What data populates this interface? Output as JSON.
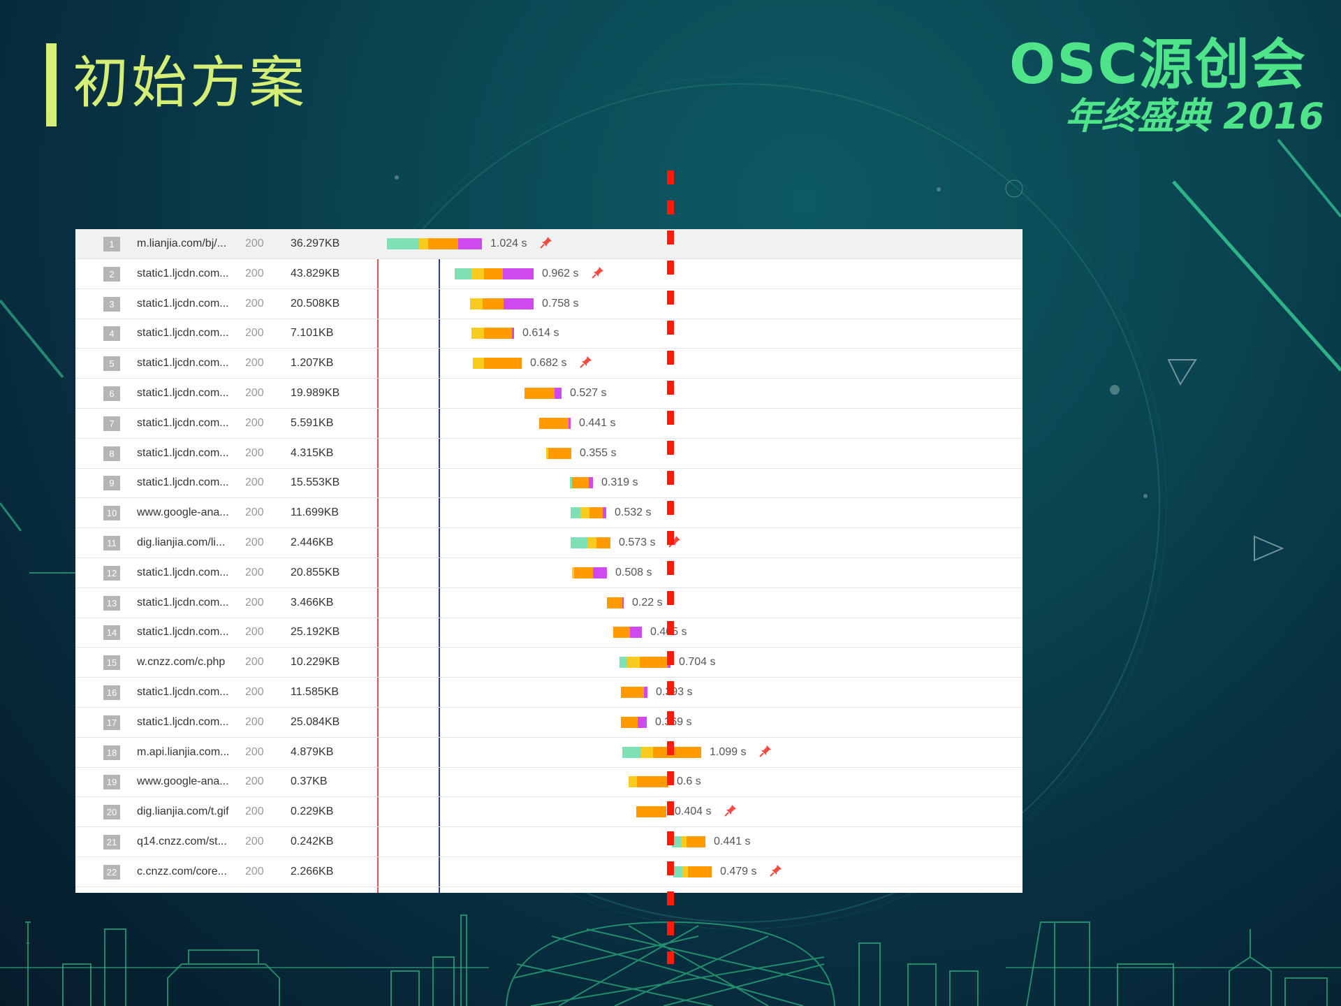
{
  "slide": {
    "title": "初始方案",
    "logo_main": "OSC源创会",
    "logo_sub": "年终盛典 2016"
  },
  "colors": {
    "title": "#d5ef76",
    "logo": "#4fe38a",
    "timing_green": "#7ee0b5",
    "timing_yellow": "#f7cc1e",
    "timing_orange": "#ff9a00",
    "timing_purple": "#cf49f1",
    "marker_red": "#ff1a0a"
  },
  "requests": [
    {
      "num": "1",
      "url": "m.lianjia.com/bj/...",
      "status": "200",
      "size": "36.297KB",
      "time": "1.024 s",
      "pinned": true,
      "start": 0.0,
      "segments": [
        {
          "c": "timing_green",
          "w": 0.046
        },
        {
          "c": "timing_yellow",
          "w": 0.013
        },
        {
          "c": "timing_orange",
          "w": 0.043
        },
        {
          "c": "timing_purple",
          "w": 0.034
        }
      ]
    },
    {
      "num": "2",
      "url": "static1.ljcdn.com...",
      "status": "200",
      "size": "43.829KB",
      "time": "0.962 s",
      "pinned": true,
      "start": 0.097,
      "segments": [
        {
          "c": "timing_green",
          "w": 0.024
        },
        {
          "c": "timing_yellow",
          "w": 0.018
        },
        {
          "c": "timing_orange",
          "w": 0.027
        },
        {
          "c": "timing_purple",
          "w": 0.044
        }
      ]
    },
    {
      "num": "3",
      "url": "static1.ljcdn.com...",
      "status": "200",
      "size": "20.508KB",
      "time": "0.758 s",
      "pinned": false,
      "start": 0.119,
      "segments": [
        {
          "c": "timing_yellow",
          "w": 0.018
        },
        {
          "c": "timing_orange",
          "w": 0.03
        },
        {
          "c": "timing_purple",
          "w": 0.043
        }
      ]
    },
    {
      "num": "4",
      "url": "static1.ljcdn.com...",
      "status": "200",
      "size": "7.101KB",
      "time": "0.614 s",
      "pinned": false,
      "start": 0.121,
      "segments": [
        {
          "c": "timing_yellow",
          "w": 0.018
        },
        {
          "c": "timing_orange",
          "w": 0.04
        },
        {
          "c": "timing_purple",
          "w": 0.003
        }
      ]
    },
    {
      "num": "5",
      "url": "static1.ljcdn.com...",
      "status": "200",
      "size": "1.207KB",
      "time": "0.682 s",
      "pinned": true,
      "start": 0.123,
      "segments": [
        {
          "c": "timing_yellow",
          "w": 0.016
        },
        {
          "c": "timing_orange",
          "w": 0.054
        }
      ]
    },
    {
      "num": "6",
      "url": "static1.ljcdn.com...",
      "status": "200",
      "size": "19.989KB",
      "time": "0.527 s",
      "pinned": false,
      "start": 0.197,
      "segments": [
        {
          "c": "timing_orange",
          "w": 0.043
        },
        {
          "c": "timing_purple",
          "w": 0.01
        }
      ]
    },
    {
      "num": "7",
      "url": "static1.ljcdn.com...",
      "status": "200",
      "size": "5.591KB",
      "time": "0.441 s",
      "pinned": false,
      "start": 0.218,
      "segments": [
        {
          "c": "timing_orange",
          "w": 0.042
        },
        {
          "c": "timing_purple",
          "w": 0.003
        }
      ]
    },
    {
      "num": "8",
      "url": "static1.ljcdn.com...",
      "status": "200",
      "size": "4.315KB",
      "time": "0.355 s",
      "pinned": false,
      "start": 0.228,
      "segments": [
        {
          "c": "timing_yellow",
          "w": 0.003
        },
        {
          "c": "timing_orange",
          "w": 0.033
        }
      ]
    },
    {
      "num": "9",
      "url": "static1.ljcdn.com...",
      "status": "200",
      "size": "15.553KB",
      "time": "0.319 s",
      "pinned": false,
      "start": 0.262,
      "segments": [
        {
          "c": "timing_green",
          "w": 0.003
        },
        {
          "c": "timing_orange",
          "w": 0.024
        },
        {
          "c": "timing_purple",
          "w": 0.006
        }
      ]
    },
    {
      "num": "10",
      "url": "www.google-ana...",
      "status": "200",
      "size": "11.699KB",
      "time": "0.532 s",
      "pinned": false,
      "start": 0.263,
      "segments": [
        {
          "c": "timing_green",
          "w": 0.014
        },
        {
          "c": "timing_yellow",
          "w": 0.013
        },
        {
          "c": "timing_orange",
          "w": 0.019
        },
        {
          "c": "timing_purple",
          "w": 0.005
        }
      ]
    },
    {
      "num": "11",
      "url": "dig.lianjia.com/li...",
      "status": "200",
      "size": "2.446KB",
      "time": "0.573 s",
      "pinned": true,
      "start": 0.263,
      "segments": [
        {
          "c": "timing_green",
          "w": 0.024
        },
        {
          "c": "timing_yellow",
          "w": 0.013
        },
        {
          "c": "timing_orange",
          "w": 0.02
        }
      ]
    },
    {
      "num": "12",
      "url": "static1.ljcdn.com...",
      "status": "200",
      "size": "20.855KB",
      "time": "0.508 s",
      "pinned": false,
      "start": 0.265,
      "segments": [
        {
          "c": "timing_yellow",
          "w": 0.003
        },
        {
          "c": "timing_orange",
          "w": 0.027
        },
        {
          "c": "timing_purple",
          "w": 0.02
        }
      ]
    },
    {
      "num": "13",
      "url": "static1.ljcdn.com...",
      "status": "200",
      "size": "3.466KB",
      "time": "0.22 s",
      "pinned": false,
      "start": 0.315,
      "segments": [
        {
          "c": "timing_orange",
          "w": 0.022
        },
        {
          "c": "timing_purple",
          "w": 0.002
        }
      ]
    },
    {
      "num": "14",
      "url": "static1.ljcdn.com...",
      "status": "200",
      "size": "25.192KB",
      "time": "0.405 s",
      "pinned": false,
      "start": 0.324,
      "segments": [
        {
          "c": "timing_orange",
          "w": 0.024
        },
        {
          "c": "timing_purple",
          "w": 0.017
        }
      ]
    },
    {
      "num": "15",
      "url": "w.cnzz.com/c.php",
      "status": "200",
      "size": "10.229KB",
      "time": "0.704 s",
      "pinned": false,
      "start": 0.333,
      "segments": [
        {
          "c": "timing_green",
          "w": 0.011
        },
        {
          "c": "timing_yellow",
          "w": 0.018
        },
        {
          "c": "timing_orange",
          "w": 0.04
        },
        {
          "c": "timing_purple",
          "w": 0.004
        }
      ]
    },
    {
      "num": "16",
      "url": "static1.ljcdn.com...",
      "status": "200",
      "size": "11.585KB",
      "time": "0.393 s",
      "pinned": false,
      "start": 0.335,
      "segments": [
        {
          "c": "timing_orange",
          "w": 0.033
        },
        {
          "c": "timing_purple",
          "w": 0.005
        }
      ]
    },
    {
      "num": "17",
      "url": "static1.ljcdn.com...",
      "status": "200",
      "size": "25.084KB",
      "time": "0.369 s",
      "pinned": false,
      "start": 0.335,
      "segments": [
        {
          "c": "timing_orange",
          "w": 0.024
        },
        {
          "c": "timing_purple",
          "w": 0.013
        }
      ]
    },
    {
      "num": "18",
      "url": "m.api.lianjia.com...",
      "status": "200",
      "size": "4.879KB",
      "time": "1.099 s",
      "pinned": true,
      "start": 0.337,
      "segments": [
        {
          "c": "timing_green",
          "w": 0.027
        },
        {
          "c": "timing_yellow",
          "w": 0.017
        },
        {
          "c": "timing_orange",
          "w": 0.069
        }
      ]
    },
    {
      "num": "19",
      "url": "www.google-ana...",
      "status": "200",
      "size": "0.37KB",
      "time": "0.6 s",
      "pinned": false,
      "start": 0.346,
      "segments": [
        {
          "c": "timing_yellow",
          "w": 0.012
        },
        {
          "c": "timing_orange",
          "w": 0.045
        }
      ]
    },
    {
      "num": "20",
      "url": "dig.lianjia.com/t.gif",
      "status": "200",
      "size": "0.229KB",
      "time": "0.404 s",
      "pinned": true,
      "start": 0.357,
      "segments": [
        {
          "c": "timing_orange",
          "w": 0.043
        }
      ]
    },
    {
      "num": "21",
      "url": "q14.cnzz.com/st...",
      "status": "200",
      "size": "0.242KB",
      "time": "0.441 s",
      "pinned": false,
      "start": 0.408,
      "segments": [
        {
          "c": "timing_green",
          "w": 0.013
        },
        {
          "c": "timing_yellow",
          "w": 0.008
        },
        {
          "c": "timing_orange",
          "w": 0.027
        }
      ]
    },
    {
      "num": "22",
      "url": "c.cnzz.com/core...",
      "status": "200",
      "size": "2.266KB",
      "time": "0.479 s",
      "pinned": true,
      "start": 0.41,
      "segments": [
        {
          "c": "timing_green",
          "w": 0.013
        },
        {
          "c": "timing_yellow",
          "w": 0.008
        },
        {
          "c": "timing_orange",
          "w": 0.034
        }
      ]
    }
  ]
}
